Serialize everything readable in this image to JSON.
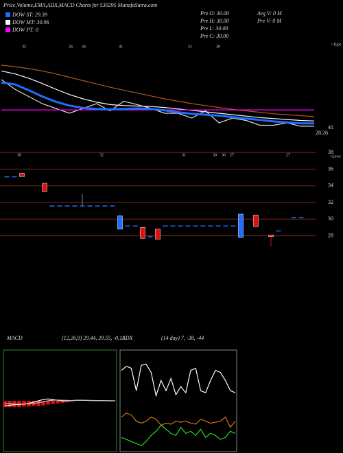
{
  "chart_data": [
    {
      "type": "line",
      "title": "Price,Volume,EMA,ADX,MACD Charts for 530295 MunafaSutra.com",
      "legend": [
        "DOW ST: 29.39",
        "DOW MT: 30.96",
        "DOW PT: 0"
      ],
      "info": [
        "Pre O: 30.00",
        "Pre H: 30.00",
        "Pre L: 30.00",
        "Pre C: 30.00"
      ],
      "volume_info": [
        "Avg V: 0 M",
        "Pre V: 0 M"
      ],
      "tops_label": "<Tops",
      "top_labels": [
        "35",
        "36",
        "36",
        "41",
        "31",
        "30"
      ],
      "right_label": "41",
      "last_price": "28.26",
      "categories": [
        null,
        null,
        null,
        null,
        null,
        null,
        null,
        null,
        null,
        null,
        null,
        null,
        null,
        null,
        null,
        null,
        null,
        null,
        null,
        null,
        null,
        null,
        null,
        null
      ],
      "ylim": [
        26,
        46
      ],
      "series": [
        {
          "color": "#b05a1a",
          "values": [
            41,
            40.7,
            40.3,
            39.8,
            39.2,
            38.5,
            37.8,
            37.1,
            36.4,
            35.8,
            35.2,
            34.6,
            34.0,
            33.5,
            33.0,
            32.6,
            32.2,
            31.8,
            31.5,
            31.2,
            30.9,
            30.7,
            30.5,
            30.3
          ]
        },
        {
          "color": "#ffffff",
          "values": [
            39.8,
            39.2,
            38.3,
            37.2,
            36.0,
            34.9,
            34.0,
            33.3,
            32.8,
            32.6,
            32.5,
            32.4,
            32.2,
            31.9,
            31.6,
            31.3,
            31.0,
            30.7,
            30.4,
            30.1,
            29.9,
            29.7,
            29.5,
            29.4
          ]
        },
        {
          "color": "#dddddd",
          "values": [
            38,
            36,
            34.5,
            33,
            32,
            31,
            32,
            33,
            31.5,
            33.5,
            32.8,
            32,
            31,
            31,
            30,
            31.5,
            29,
            30,
            29.5,
            28.5,
            28.5,
            29,
            28.3,
            28.3
          ]
        },
        {
          "color": "#ff00ff",
          "values": [
            31.7,
            31.7,
            31.7,
            31.7,
            31.7,
            31.7,
            31.7,
            31.7,
            31.7,
            31.7,
            31.7,
            31.7,
            31.7,
            31.7,
            31.7,
            31.7,
            31.7,
            31.7,
            31.7,
            31.7,
            31.7,
            31.7,
            31.7,
            31.7
          ]
        },
        {
          "color": "#1e6fff",
          "values": [
            37.4,
            37,
            35.8,
            34.5,
            33.4,
            32.6,
            32.1,
            31.9,
            31.8,
            31.9,
            32.0,
            31.9,
            31.6,
            31.2,
            30.9,
            30.7,
            30.5,
            30.2,
            29.9,
            29.6,
            29.3,
            29.1,
            28.9,
            28.9
          ]
        }
      ]
    },
    {
      "type": "candlestick",
      "lows_label": "<Lows",
      "low_labels": [
        "30",
        "32",
        "31",
        "30",
        "30",
        "27",
        "27"
      ],
      "categories": [
        null,
        null,
        null,
        null,
        null,
        null,
        null,
        null,
        null,
        null,
        null,
        null,
        null,
        null,
        null,
        null,
        null,
        null,
        null,
        null,
        null,
        null,
        null,
        null,
        null,
        null,
        null,
        null,
        null,
        null,
        null,
        null,
        null,
        null,
        null,
        null,
        null,
        null,
        null,
        null
      ],
      "ylim": [
        25,
        39
      ],
      "yticks": [
        38,
        36,
        34,
        32,
        30,
        28
      ],
      "grid": true,
      "up_color": "#1e6fff",
      "down_color": "#e01010",
      "open": [
        35.1,
        35.1,
        35.5,
        null,
        null,
        34.3,
        31.6,
        31.6,
        31.6,
        31.6,
        31.6,
        31.6,
        31.6,
        31.6,
        31.6,
        28.8,
        29.2,
        29.2,
        29.0,
        27.9,
        28.8,
        29.2,
        29.2,
        29.2,
        29.2,
        29.2,
        29.2,
        29.2,
        29.2,
        29.2,
        29.2,
        27.8,
        null,
        30.5,
        null,
        28.1,
        28.6,
        null,
        30.2,
        30.2
      ],
      "high": [
        35.1,
        35.1,
        35.5,
        null,
        null,
        34.3,
        31.6,
        31.6,
        31.6,
        31.6,
        33.0,
        31.6,
        31.6,
        31.6,
        31.6,
        30.4,
        29.2,
        29.2,
        29.0,
        27.9,
        28.8,
        29.2,
        29.2,
        29.2,
        29.2,
        29.2,
        29.2,
        29.2,
        29.2,
        29.2,
        29.2,
        30.6,
        null,
        30.5,
        null,
        28.1,
        28.6,
        null,
        30.2,
        30.2
      ],
      "low": [
        35.1,
        35.1,
        35.1,
        null,
        null,
        33.3,
        31.6,
        31.6,
        31.6,
        31.6,
        31.6,
        31.6,
        31.6,
        31.6,
        31.6,
        28.8,
        29.2,
        29.2,
        27.7,
        27.9,
        27.6,
        29.2,
        29.2,
        29.2,
        29.2,
        29.2,
        29.2,
        29.2,
        29.2,
        29.2,
        29.2,
        27.8,
        null,
        29.1,
        null,
        26.7,
        28.6,
        null,
        30.2,
        30.2
      ],
      "close": [
        35.1,
        35.1,
        35.1,
        null,
        null,
        33.3,
        31.6,
        31.6,
        31.6,
        31.6,
        31.6,
        31.6,
        31.6,
        31.6,
        31.6,
        30.4,
        29.2,
        29.2,
        27.7,
        27.9,
        27.6,
        29.2,
        29.2,
        29.2,
        29.2,
        29.2,
        29.2,
        29.2,
        29.2,
        29.2,
        29.2,
        30.6,
        null,
        29.1,
        null,
        27.9,
        28.6,
        null,
        30.2,
        30.2
      ]
    },
    {
      "type": "line",
      "title": "MACD",
      "subtitle": "(12,26,9) 29.44, 29.55, -0.11",
      "border_color": "#2a8a2a",
      "categories": [
        null,
        null,
        null,
        null,
        null,
        null,
        null,
        null,
        null,
        null,
        null,
        null,
        null,
        null,
        null,
        null,
        null,
        null,
        null,
        null,
        null,
        null,
        null,
        null
      ],
      "ylim": [
        -4,
        4
      ],
      "bars": {
        "color": "#e01010",
        "values": [
          -0.5,
          -0.5,
          -0.5,
          -0.5,
          -0.45,
          -0.45,
          -0.4,
          -0.4,
          -0.35,
          -0.3,
          -0.25,
          -0.2,
          -0.15,
          -0.1,
          -0.05,
          0,
          0,
          0,
          0,
          0,
          0,
          0,
          0,
          0
        ]
      },
      "series": [
        {
          "color": "#ffffff",
          "values": [
            -0.4,
            -0.35,
            -0.3,
            -0.3,
            -0.25,
            -0.2,
            -0.1,
            0,
            0.1,
            0.15,
            0.1,
            0.05,
            0,
            0,
            0.02,
            0.05,
            0.05,
            0.03,
            0.02,
            0.02,
            0.01,
            0.01,
            0,
            0
          ]
        },
        {
          "color": "#bbbbbb",
          "values": [
            -0.2,
            -0.22,
            -0.25,
            -0.26,
            -0.25,
            -0.23,
            -0.2,
            -0.15,
            -0.08,
            0,
            0.05,
            0.06,
            0.05,
            0.03,
            0.02,
            0.03,
            0.04,
            0.04,
            0.03,
            0.02,
            0.02,
            0.01,
            0.01,
            0
          ]
        }
      ]
    },
    {
      "type": "line",
      "title": "ADX",
      "subtitle": "(14 day) 7, -38, -44",
      "border_color": "#888888",
      "categories": [
        null,
        null,
        null,
        null,
        null,
        null,
        null,
        null,
        null,
        null,
        null,
        null,
        null,
        null,
        null,
        null,
        null,
        null,
        null,
        null,
        null,
        null,
        null,
        null
      ],
      "ylim": [
        0,
        100
      ],
      "series": [
        {
          "color": "#ffffff",
          "values": [
            80,
            84,
            82,
            60,
            85,
            86,
            78,
            55,
            70,
            60,
            72,
            56,
            64,
            58,
            80,
            82,
            60,
            58,
            70,
            80,
            78,
            70,
            60,
            58
          ]
        },
        {
          "color": "#d07a10",
          "values": [
            34,
            38,
            36,
            30,
            28,
            30,
            34,
            32,
            26,
            28,
            27,
            30,
            29,
            30,
            28,
            27,
            32,
            30,
            28,
            29,
            30,
            34,
            24,
            30
          ]
        },
        {
          "color": "#22dd22",
          "values": [
            14,
            12,
            10,
            8,
            6,
            10,
            16,
            20,
            26,
            22,
            18,
            16,
            24,
            18,
            20,
            16,
            22,
            14,
            18,
            16,
            12,
            14,
            20,
            18
          ]
        }
      ]
    }
  ]
}
